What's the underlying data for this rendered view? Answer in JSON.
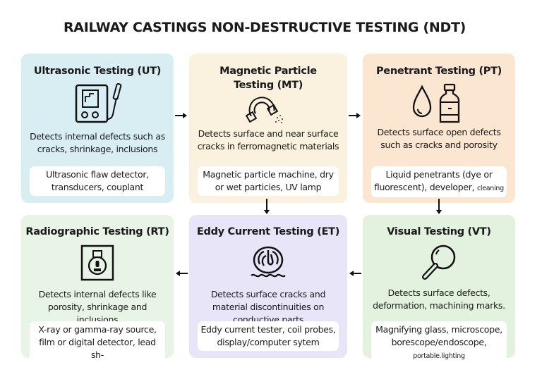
{
  "title": "RAILWAY CASTINGS NON-DESTRUCTIVE TESTING (NDT)",
  "cards": [
    {
      "id": "ut",
      "title": "Ultrasonic Testing (UT)",
      "icon": "ultrasonic-flaw-detector-icon",
      "color": "#d8eef2",
      "desc": "Detects internal defects such as cracks, shrinkage, inclusions",
      "tools": "Ultrasonic flaw detector, transducers, couplant",
      "tools_small": ""
    },
    {
      "id": "mt",
      "title": "Magnetic Particle Testing (MT)",
      "icon": "horseshoe-magnet-icon",
      "color": "#fbf1df",
      "desc": "Detects surface and near surface cracks in ferromagnetic materials",
      "tools": "Magnetic particle machine, dry or wet particies, UV lamp",
      "tools_small": ""
    },
    {
      "id": "pt",
      "title": "Penetrant Testing (PT)",
      "icon": "droplet-bottle-icon",
      "color": "#fbe6d2",
      "desc": "Detects surface open defects such as cracks and porosity",
      "tools": "Liquid penetrants (dye or fluorescent), developer,",
      "tools_small": "cleaning"
    },
    {
      "id": "rt",
      "title": "Radiographic Testing (RT)",
      "icon": "radiation-source-icon",
      "color": "#e8f5e6",
      "desc": "Detects internal defects like porosity, shrinkage and inclusions",
      "tools": "X-ray or gamma-ray source, film or digital detector, lead sh-",
      "tools_small": ""
    },
    {
      "id": "et",
      "title": "Eddy Current Testing (ET)",
      "icon": "eddy-current-coil-icon",
      "color": "#e7e5f7",
      "desc": "Detects surface cracks and material discontinuities on conductive parts",
      "tools": "Eddy current tester, coil probes, display/computer sytem",
      "tools_small": ""
    },
    {
      "id": "vt",
      "title": "Visual Testing (VT)",
      "icon": "magnifying-glass-icon",
      "color": "#e3f2df",
      "desc": "Detects surface defects, deformation, machining marks.",
      "tools": "Magnifying glass, microscope, borescope/endoscope,",
      "tools_small": "portable.lighting"
    }
  ]
}
